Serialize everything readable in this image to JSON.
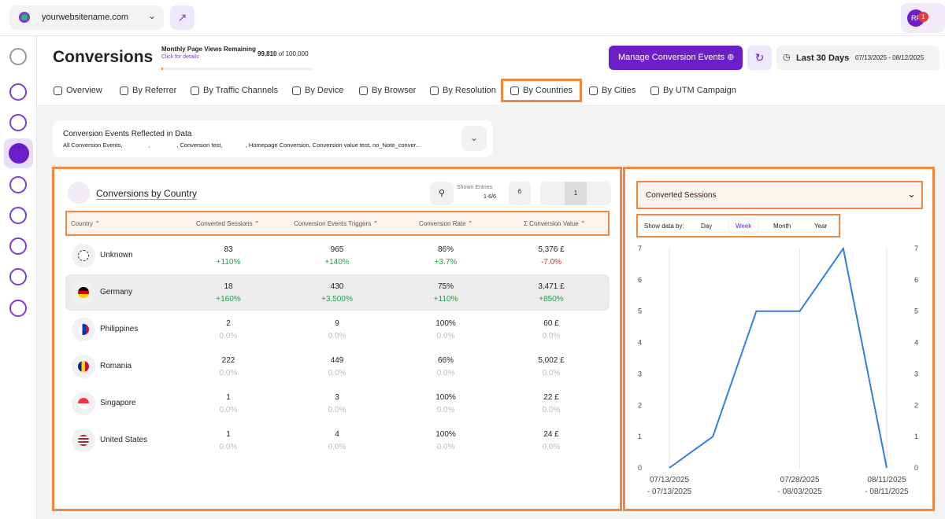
{
  "header": {
    "site": "yourwebsitename.com",
    "avatar": "RF",
    "badge": "1"
  },
  "page": {
    "title": "Conversions",
    "quota_label": "Monthly Page Views Remaining",
    "quota_link": "Click for details",
    "quota_value": "99,810",
    "quota_total": "of 100,000",
    "manage_button": "Manage Conversion Events",
    "range_label": "Last 30 Days",
    "range_dates": "07/13/2025 - 08/12/2025"
  },
  "tabs": [
    "Overview",
    "By Referrer",
    "By Traffic Channels",
    "By Device",
    "By Browser",
    "By Resolution",
    "By Countries",
    "By Cities",
    "By UTM Campaign"
  ],
  "active_tab": 6,
  "events": {
    "title": "Conversion Events Reflected in Data",
    "text": "All Conversion Events,                ,                , Conversion test,              , Homepage Conversion, Conversion value test, no_Note_conver..."
  },
  "table": {
    "title": "Conversions by Country",
    "shown_label": "Shown Entries",
    "shown_range": "1-6/6",
    "page_size": "6",
    "page": "1",
    "columns": [
      "Country",
      "Converted Sessions",
      "Conversion Events Triggers",
      "Conversion Rate",
      "Σ Conversion Value"
    ],
    "rows": [
      {
        "country": "Unknown",
        "cells": [
          [
            "83",
            "+110%"
          ],
          [
            "965",
            "+140%"
          ],
          [
            "86%",
            "+3.7%"
          ],
          [
            "5,376 £",
            "-7.0%"
          ]
        ]
      },
      {
        "country": "Germany",
        "cells": [
          [
            "18",
            "+160%"
          ],
          [
            "430",
            "+3,500%"
          ],
          [
            "75%",
            "+110%"
          ],
          [
            "3,471 £",
            "+850%"
          ]
        ]
      },
      {
        "country": "Philippines",
        "cells": [
          [
            "2",
            "0.0%"
          ],
          [
            "9",
            "0.0%"
          ],
          [
            "100%",
            "0.0%"
          ],
          [
            "60 £",
            "0.0%"
          ]
        ]
      },
      {
        "country": "Romania",
        "cells": [
          [
            "222",
            "0.0%"
          ],
          [
            "449",
            "0.0%"
          ],
          [
            "66%",
            "0.0%"
          ],
          [
            "5,002 £",
            "0.0%"
          ]
        ]
      },
      {
        "country": "Singapore",
        "cells": [
          [
            "1",
            "0.0%"
          ],
          [
            "3",
            "0.0%"
          ],
          [
            "100%",
            "0.0%"
          ],
          [
            "22 £",
            "0.0%"
          ]
        ]
      },
      {
        "country": "United States",
        "cells": [
          [
            "1",
            "0.0%"
          ],
          [
            "4",
            "0.0%"
          ],
          [
            "100%",
            "0.0%"
          ],
          [
            "24 £",
            "0.0%"
          ]
        ]
      }
    ]
  },
  "chart": {
    "dropdown": "Converted Sessions",
    "show_by_label": "Show data by:",
    "periods": [
      "Day",
      "Week",
      "Month",
      "Year"
    ],
    "active_period": 1
  },
  "chart_data": {
    "type": "line",
    "categories": [
      "07/13/2025\n- 07/13/2025",
      null,
      null,
      "07/28/2025\n- 08/03/2025",
      null,
      "08/11/2025\n- 08/11/2025"
    ],
    "values": [
      0,
      1,
      5,
      5,
      7,
      0
    ],
    "color": "#2f7fe0",
    "ylim": [
      0,
      7
    ],
    "yticks": [
      0,
      1,
      2,
      3,
      4,
      5,
      6,
      7
    ],
    "y2lim": [
      0,
      7
    ],
    "y2ticks": [
      0,
      1,
      2,
      3,
      4,
      5,
      6,
      7
    ],
    "grid": "x"
  }
}
